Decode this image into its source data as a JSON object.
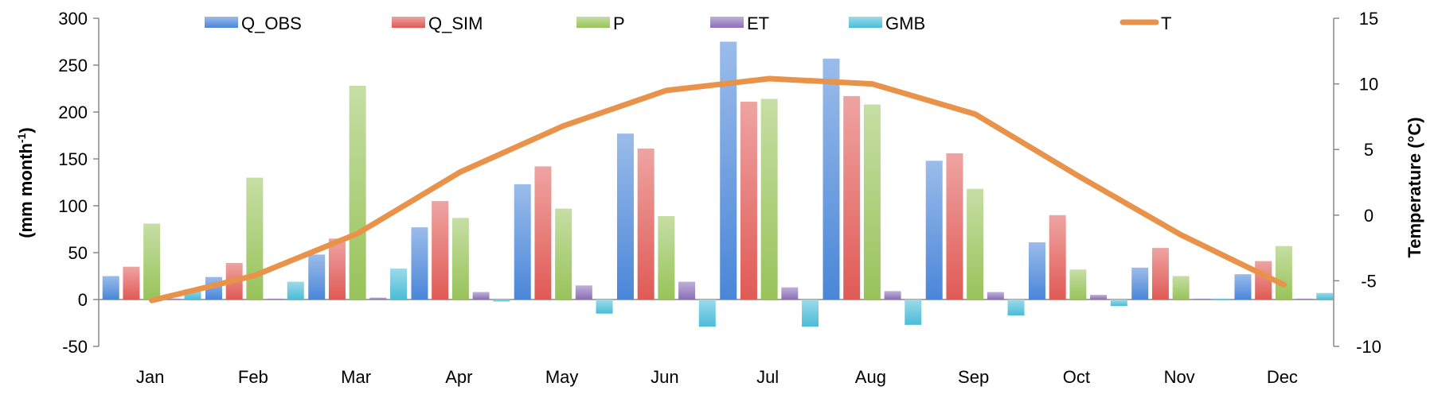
{
  "chart_data": {
    "type": "bar",
    "categories": [
      "Jan",
      "Feb",
      "Mar",
      "Apr",
      "May",
      "Jun",
      "Jul",
      "Aug",
      "Sep",
      "Oct",
      "Nov",
      "Dec"
    ],
    "series": [
      {
        "name": "Q_OBS",
        "type": "bar",
        "axis": "left",
        "color": "#4a86d8",
        "values": [
          25,
          24,
          48,
          77,
          123,
          177,
          275,
          257,
          148,
          61,
          34,
          27
        ]
      },
      {
        "name": "Q_SIM",
        "type": "bar",
        "axis": "left",
        "color": "#e05a55",
        "values": [
          35,
          39,
          65,
          105,
          142,
          161,
          211,
          217,
          156,
          90,
          55,
          41
        ]
      },
      {
        "name": "P",
        "type": "bar",
        "axis": "left",
        "color": "#98c35a",
        "values": [
          81,
          130,
          228,
          87,
          97,
          89,
          214,
          208,
          118,
          32,
          25,
          57
        ]
      },
      {
        "name": "ET",
        "type": "bar",
        "axis": "left",
        "color": "#8a6fb8",
        "values": [
          0,
          0,
          2,
          8,
          15,
          19,
          13,
          9,
          8,
          5,
          1,
          0
        ]
      },
      {
        "name": "GMB",
        "type": "bar",
        "axis": "left",
        "color": "#4bbcd8",
        "values": [
          11,
          19,
          33,
          -2,
          -15,
          -29,
          -29,
          -27,
          -17,
          -7,
          0,
          7
        ]
      },
      {
        "name": "T",
        "type": "line",
        "axis": "right",
        "color": "#e8924a",
        "values": [
          -6.5,
          -4.6,
          -1.4,
          3.3,
          6.8,
          9.5,
          10.4,
          10.0,
          7.7,
          3.0,
          -1.5,
          -5.3
        ]
      }
    ],
    "xlabel": "",
    "ylabel": "(mm month",
    "ylabel_sup": "-1",
    "ylabel_end": ")",
    "y2label": "Temperature (°C)",
    "ylim": [
      -50,
      300
    ],
    "y2lim": [
      -10,
      15
    ],
    "yticks": [
      "300",
      "250",
      "200",
      "150",
      "100",
      "50",
      "0",
      "-50"
    ],
    "y2ticks": [
      "15",
      "10",
      "5",
      "0",
      "-5",
      "-10"
    ],
    "grid": false,
    "legend_position": "top"
  }
}
